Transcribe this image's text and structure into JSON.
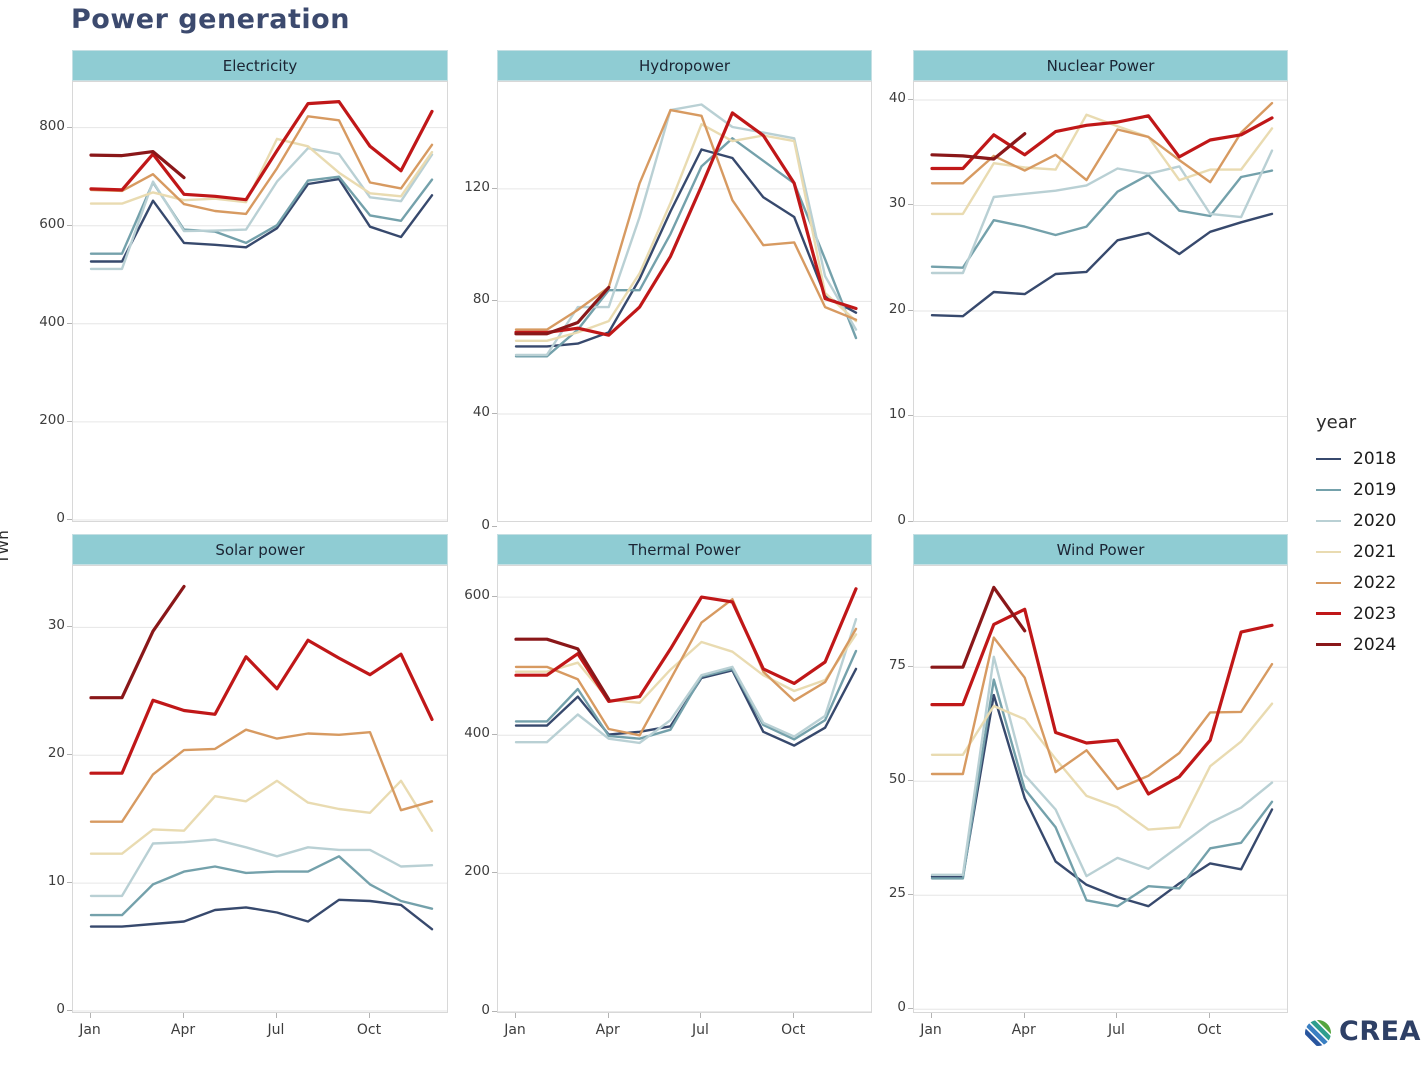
{
  "title": "Power generation",
  "ylabel": "TWh",
  "months": [
    "Jan",
    "Feb",
    "Mar",
    "Apr",
    "May",
    "Jun",
    "Jul",
    "Aug",
    "Sep",
    "Oct",
    "Nov",
    "Dec"
  ],
  "x_labeled_months": [
    "Jan",
    "Apr",
    "Jul",
    "Oct"
  ],
  "legend": {
    "title": "year",
    "years": [
      "2018",
      "2019",
      "2020",
      "2021",
      "2022",
      "2023",
      "2024"
    ],
    "colors": {
      "2018": "#37496d",
      "2019": "#74a1ab",
      "2020": "#b9d0d4",
      "2021": "#e9dbb1",
      "2022": "#d79a61",
      "2023": "#c01718",
      "2024": "#8a1719"
    }
  },
  "logo": {
    "text": "CREA"
  },
  "style_colors": {
    "panel_header_bg": "#8fccd3",
    "title_color": "#3c4a6e",
    "gridline": "#e6e6e6"
  },
  "chart_data": [
    {
      "type": "line",
      "title": "Electricity",
      "ylabel": "TWh",
      "yticks": [
        0,
        200,
        400,
        600,
        800
      ],
      "ylim": [
        0,
        893
      ],
      "grid": "horizontal-only",
      "series": [
        {
          "name": "2018",
          "values": [
            527,
            527,
            651,
            565,
            561,
            556,
            595,
            685,
            695,
            598,
            577,
            662
          ]
        },
        {
          "name": "2019",
          "values": [
            543,
            543,
            688,
            592,
            588,
            565,
            601,
            692,
            700,
            621,
            610,
            694
          ]
        },
        {
          "name": "2020",
          "values": [
            512,
            512,
            690,
            589,
            590,
            592,
            690,
            758,
            746,
            658,
            650,
            745
          ]
        },
        {
          "name": "2021",
          "values": [
            645,
            645,
            668,
            652,
            655,
            648,
            777,
            762,
            708,
            666,
            660,
            750
          ]
        },
        {
          "name": "2022",
          "values": [
            673,
            671,
            705,
            644,
            630,
            624,
            717,
            823,
            815,
            688,
            676,
            765
          ]
        },
        {
          "name": "2023",
          "values": [
            675,
            673,
            746,
            664,
            660,
            653,
            753,
            849,
            853,
            762,
            712,
            833
          ]
        },
        {
          "name": "2024",
          "values": [
            744,
            743,
            751,
            698
          ]
        }
      ]
    },
    {
      "type": "line",
      "title": "Hydropower",
      "ylabel": "TWh",
      "yticks": [
        0,
        40,
        80,
        120
      ],
      "ylim": [
        0,
        158
      ],
      "grid": "horizontal-only",
      "series": [
        {
          "name": "2018",
          "values": [
            64,
            64,
            65,
            69,
            88,
            112,
            134,
            131,
            117,
            110,
            82,
            76
          ]
        },
        {
          "name": "2019",
          "values": [
            60.5,
            60.5,
            70,
            84,
            84,
            104,
            128,
            138,
            130,
            122,
            95,
            67
          ]
        },
        {
          "name": "2020",
          "values": [
            61,
            61,
            78,
            78,
            110,
            148,
            150,
            142,
            140,
            138,
            89,
            70
          ]
        },
        {
          "name": "2021",
          "values": [
            66,
            66,
            69,
            73,
            90,
            115,
            143,
            137,
            139,
            137,
            83,
            73
          ]
        },
        {
          "name": "2022",
          "values": [
            70,
            70,
            77,
            85,
            122,
            148,
            146,
            116,
            100,
            101,
            78,
            73.5
          ]
        },
        {
          "name": "2023",
          "values": [
            69,
            69,
            70.5,
            68,
            78,
            96,
            121,
            147,
            139,
            122,
            81,
            77.5
          ]
        },
        {
          "name": "2024",
          "values": [
            68.5,
            68.5,
            72.5,
            85
          ]
        }
      ]
    },
    {
      "type": "line",
      "title": "Nuclear Power",
      "ylabel": "TWh",
      "yticks": [
        0,
        10,
        20,
        30,
        40
      ],
      "ylim": [
        0,
        41.7
      ],
      "grid": "horizontal-only",
      "series": [
        {
          "name": "2018",
          "values": [
            19.6,
            19.5,
            21.8,
            21.6,
            23.5,
            23.7,
            26.7,
            27.4,
            25.4,
            27.5,
            28.4,
            29.2
          ]
        },
        {
          "name": "2019",
          "values": [
            24.2,
            24.1,
            28.6,
            28.0,
            27.2,
            28.0,
            31.3,
            32.9,
            29.5,
            29.0,
            32.7,
            33.3
          ]
        },
        {
          "name": "2020",
          "values": [
            23.6,
            23.6,
            30.8,
            31.1,
            31.4,
            31.9,
            33.5,
            33.0,
            33.7,
            29.2,
            28.9,
            35.2
          ]
        },
        {
          "name": "2021",
          "values": [
            29.2,
            29.2,
            34.0,
            33.6,
            33.4,
            38.6,
            37.5,
            36.5,
            32.4,
            33.4,
            33.4,
            37.3
          ]
        },
        {
          "name": "2022",
          "values": [
            32.1,
            32.1,
            34.7,
            33.3,
            34.8,
            32.4,
            37.2,
            36.5,
            34.3,
            32.2,
            36.9,
            39.7
          ]
        },
        {
          "name": "2023",
          "values": [
            33.5,
            33.5,
            36.7,
            34.8,
            37.0,
            37.6,
            37.9,
            38.5,
            34.6,
            36.2,
            36.7,
            38.3
          ]
        },
        {
          "name": "2024",
          "values": [
            34.8,
            34.7,
            34.4,
            36.8
          ]
        }
      ]
    },
    {
      "type": "line",
      "title": "Solar power",
      "ylabel": "TWh",
      "yticks": [
        0,
        10,
        20,
        30
      ],
      "ylim": [
        0,
        34.8
      ],
      "grid": "horizontal-only",
      "series": [
        {
          "name": "2018",
          "values": [
            6.6,
            6.6,
            6.8,
            7.0,
            7.9,
            8.1,
            7.7,
            7.0,
            8.7,
            8.6,
            8.3,
            6.4
          ]
        },
        {
          "name": "2019",
          "values": [
            7.5,
            7.5,
            9.9,
            10.9,
            11.3,
            10.8,
            10.9,
            10.9,
            12.1,
            9.9,
            8.6,
            8.0
          ]
        },
        {
          "name": "2020",
          "values": [
            9.0,
            9.0,
            13.1,
            13.2,
            13.4,
            12.8,
            12.1,
            12.8,
            12.6,
            12.6,
            11.3,
            11.4
          ]
        },
        {
          "name": "2021",
          "values": [
            12.3,
            12.3,
            14.2,
            14.1,
            16.8,
            16.4,
            18.0,
            16.3,
            15.8,
            15.5,
            18.0,
            14.1
          ]
        },
        {
          "name": "2022",
          "values": [
            14.8,
            14.8,
            18.5,
            20.4,
            20.5,
            22.0,
            21.3,
            21.7,
            21.6,
            21.8,
            15.7,
            16.4
          ]
        },
        {
          "name": "2023",
          "values": [
            18.6,
            18.6,
            24.3,
            23.5,
            23.2,
            27.7,
            25.2,
            29.0,
            27.6,
            26.3,
            27.9,
            22.8
          ]
        },
        {
          "name": "2024",
          "values": [
            24.5,
            24.5,
            29.7,
            33.2
          ]
        }
      ]
    },
    {
      "type": "line",
      "title": "Thermal Power",
      "ylabel": "TWh",
      "yticks": [
        0,
        200,
        400,
        600
      ],
      "ylim": [
        0,
        645
      ],
      "grid": "horizontal-only",
      "series": [
        {
          "name": "2018",
          "values": [
            414,
            414,
            456,
            401,
            405,
            413,
            483,
            494,
            405,
            385,
            411,
            496
          ]
        },
        {
          "name": "2019",
          "values": [
            420,
            420,
            467,
            399,
            395,
            408,
            485,
            496,
            415,
            394,
            422,
            522
          ]
        },
        {
          "name": "2020",
          "values": [
            390,
            390,
            430,
            395,
            389,
            422,
            487,
            499,
            418,
            398,
            428,
            568
          ]
        },
        {
          "name": "2021",
          "values": [
            492,
            492,
            505,
            451,
            447,
            495,
            535,
            521,
            487,
            464,
            480,
            546
          ]
        },
        {
          "name": "2022",
          "values": [
            499,
            499,
            481,
            409,
            400,
            481,
            563,
            597,
            492,
            450,
            477,
            554
          ]
        },
        {
          "name": "2023",
          "values": [
            487,
            487,
            518,
            449,
            456,
            525,
            600,
            593,
            496,
            475,
            506,
            612
          ]
        },
        {
          "name": "2024",
          "values": [
            539,
            539,
            525,
            452
          ]
        }
      ]
    },
    {
      "type": "line",
      "title": "Wind Power",
      "ylabel": "TWh",
      "yticks": [
        0,
        25,
        50,
        75
      ],
      "ylim": [
        0,
        97.2
      ],
      "grid": "horizontal-only",
      "series": [
        {
          "name": "2018",
          "values": [
            29.1,
            29.1,
            68.9,
            46.3,
            32.4,
            27.3,
            24.6,
            22.6,
            27.6,
            32.0,
            30.7,
            43.8
          ]
        },
        {
          "name": "2019",
          "values": [
            28.7,
            28.7,
            72.3,
            48.3,
            39.9,
            23.9,
            22.6,
            27.0,
            26.5,
            35.3,
            36.5,
            45.5
          ]
        },
        {
          "name": "2020",
          "values": [
            29.5,
            29.5,
            77.3,
            51.4,
            43.8,
            29.2,
            33.2,
            30.8,
            35.8,
            40.9,
            44.2,
            49.7
          ]
        },
        {
          "name": "2021",
          "values": [
            55.8,
            55.8,
            66.5,
            63.6,
            54.9,
            46.8,
            44.3,
            39.4,
            39.9,
            53.3,
            58.7,
            67.0
          ]
        },
        {
          "name": "2022",
          "values": [
            51.6,
            51.6,
            81.5,
            72.7,
            52.0,
            56.8,
            48.3,
            51.2,
            56.2,
            65.1,
            65.2,
            75.7
          ]
        },
        {
          "name": "2023",
          "values": [
            66.8,
            66.8,
            84.4,
            87.7,
            60.7,
            58.4,
            59.0,
            47.2,
            51.0,
            59.0,
            82.7,
            84.2
          ]
        },
        {
          "name": "2024",
          "values": [
            75.0,
            75.0,
            92.5,
            83.0
          ]
        }
      ]
    }
  ]
}
